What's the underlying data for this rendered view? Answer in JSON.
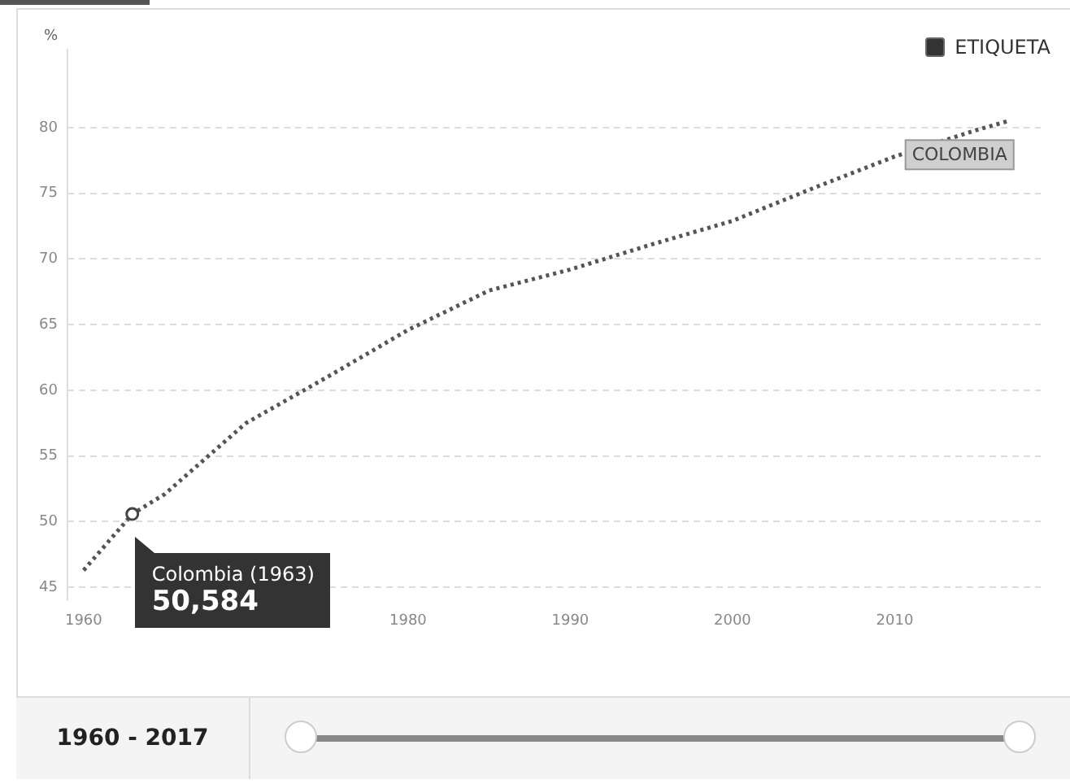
{
  "chart_data": {
    "type": "line",
    "ylabel": "%",
    "x": [
      1960,
      1963,
      1965,
      1970,
      1975,
      1980,
      1985,
      1990,
      1995,
      2000,
      2005,
      2010,
      2015,
      2017
    ],
    "series": [
      {
        "name": "COLOMBIA",
        "color": "#555555",
        "values": [
          46.3,
          50.584,
          52.1,
          57.5,
          61.0,
          64.6,
          67.6,
          69.2,
          71.1,
          72.9,
          75.4,
          77.8,
          79.8,
          80.5
        ]
      }
    ],
    "xlim": [
      1959,
      2019
    ],
    "xticks": [
      1960,
      1980,
      1990,
      2000,
      2010
    ],
    "ylim": [
      44,
      86
    ],
    "yticks": [
      45,
      50,
      55,
      60,
      65,
      70,
      75,
      80
    ],
    "grid": "y",
    "legend": false,
    "marker": "none",
    "line_style": "dotted",
    "annotations": [
      {
        "text": "Colombia (1963)",
        "x": 1963,
        "y": 50.584
      },
      "50,584",
      "ETIQUETA",
      "1960 - 2017"
    ]
  }
}
